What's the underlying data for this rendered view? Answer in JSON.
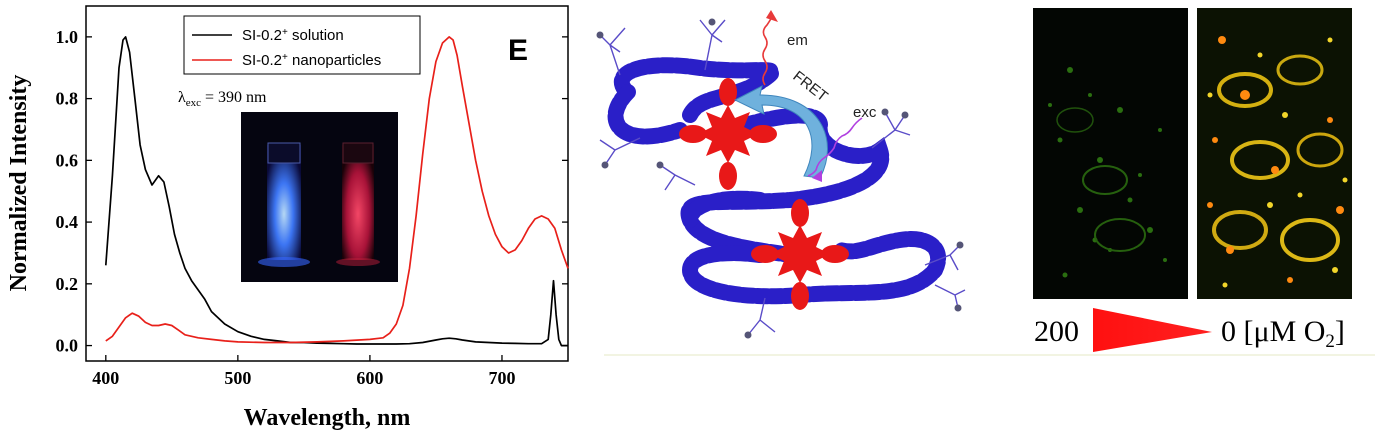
{
  "chart_data": {
    "type": "line",
    "panel_label": "E",
    "xlabel": "Wavelength, nm",
    "ylabel": "Normalized Intensity",
    "xlim": [
      385,
      750
    ],
    "ylim": [
      -0.05,
      1.1
    ],
    "xticks": [
      400,
      500,
      600,
      700
    ],
    "yticks": [
      "0.0",
      "0.2",
      "0.4",
      "0.6",
      "0.8",
      "1.0"
    ],
    "ytick_values": [
      0,
      0.2,
      0.4,
      0.6,
      0.8,
      1.0
    ],
    "annotation": {
      "lambda": "λ",
      "sub": "exc",
      "rest": " = 390 nm"
    },
    "series": [
      {
        "name": "SI-0.2⁺ solution",
        "name_base": "SI-0.2",
        "name_sup": "+",
        "name_rest": " solution",
        "color": "#000000",
        "x": [
          400,
          405,
          410,
          413,
          415,
          418,
          422,
          426,
          430,
          435,
          440,
          444,
          448,
          452,
          456,
          460,
          465,
          470,
          475,
          480,
          490,
          500,
          510,
          520,
          530,
          540,
          550,
          560,
          570,
          580,
          590,
          600,
          610,
          620,
          630,
          640,
          650,
          655,
          660,
          665,
          670,
          680,
          690,
          700,
          710,
          720,
          730,
          735,
          737,
          739,
          741,
          743,
          745,
          750
        ],
        "values": [
          0.26,
          0.55,
          0.9,
          0.99,
          1.0,
          0.95,
          0.8,
          0.65,
          0.57,
          0.52,
          0.55,
          0.53,
          0.45,
          0.36,
          0.3,
          0.25,
          0.21,
          0.18,
          0.15,
          0.11,
          0.07,
          0.045,
          0.03,
          0.02,
          0.015,
          0.01,
          0.01,
          0.008,
          0.007,
          0.006,
          0.005,
          0.005,
          0.005,
          0.005,
          0.006,
          0.01,
          0.018,
          0.022,
          0.024,
          0.022,
          0.018,
          0.012,
          0.01,
          0.008,
          0.007,
          0.006,
          0.006,
          0.02,
          0.1,
          0.21,
          0.1,
          0.02,
          0.0,
          0.0
        ]
      },
      {
        "name": "SI-0.2⁺ nanoparticles",
        "name_base": "SI-0.2",
        "name_sup": "+",
        "name_rest": " nanoparticles",
        "color": "#e8201a",
        "x": [
          400,
          405,
          410,
          415,
          420,
          425,
          430,
          435,
          440,
          445,
          450,
          455,
          460,
          470,
          480,
          490,
          500,
          520,
          540,
          560,
          580,
          600,
          610,
          615,
          620,
          625,
          630,
          635,
          640,
          645,
          650,
          655,
          660,
          663,
          666,
          670,
          675,
          680,
          685,
          690,
          695,
          700,
          705,
          710,
          715,
          720,
          725,
          730,
          735,
          740,
          745,
          750
        ],
        "values": [
          0.015,
          0.03,
          0.06,
          0.09,
          0.105,
          0.095,
          0.075,
          0.065,
          0.065,
          0.07,
          0.065,
          0.05,
          0.035,
          0.025,
          0.02,
          0.015,
          0.012,
          0.01,
          0.01,
          0.012,
          0.015,
          0.02,
          0.025,
          0.04,
          0.07,
          0.13,
          0.25,
          0.42,
          0.62,
          0.8,
          0.92,
          0.98,
          1.0,
          0.99,
          0.94,
          0.84,
          0.72,
          0.6,
          0.5,
          0.42,
          0.36,
          0.32,
          0.3,
          0.31,
          0.34,
          0.38,
          0.41,
          0.42,
          0.41,
          0.38,
          0.31,
          0.25
        ]
      }
    ],
    "grid": false,
    "legend_position": "top-center"
  },
  "diagram": {
    "fret_label": "FRET",
    "em_label": "em",
    "exc_label": "exc"
  },
  "scale": {
    "left_value": "200",
    "right_value": "0 [μM O",
    "right_sub": "2",
    "right_close": "]"
  },
  "colors": {
    "polymer": "#2a1fc8",
    "dye": "#e81818",
    "arrow": "#5fa8d8",
    "exc": "#b040e0",
    "em": "#e83a3a"
  }
}
